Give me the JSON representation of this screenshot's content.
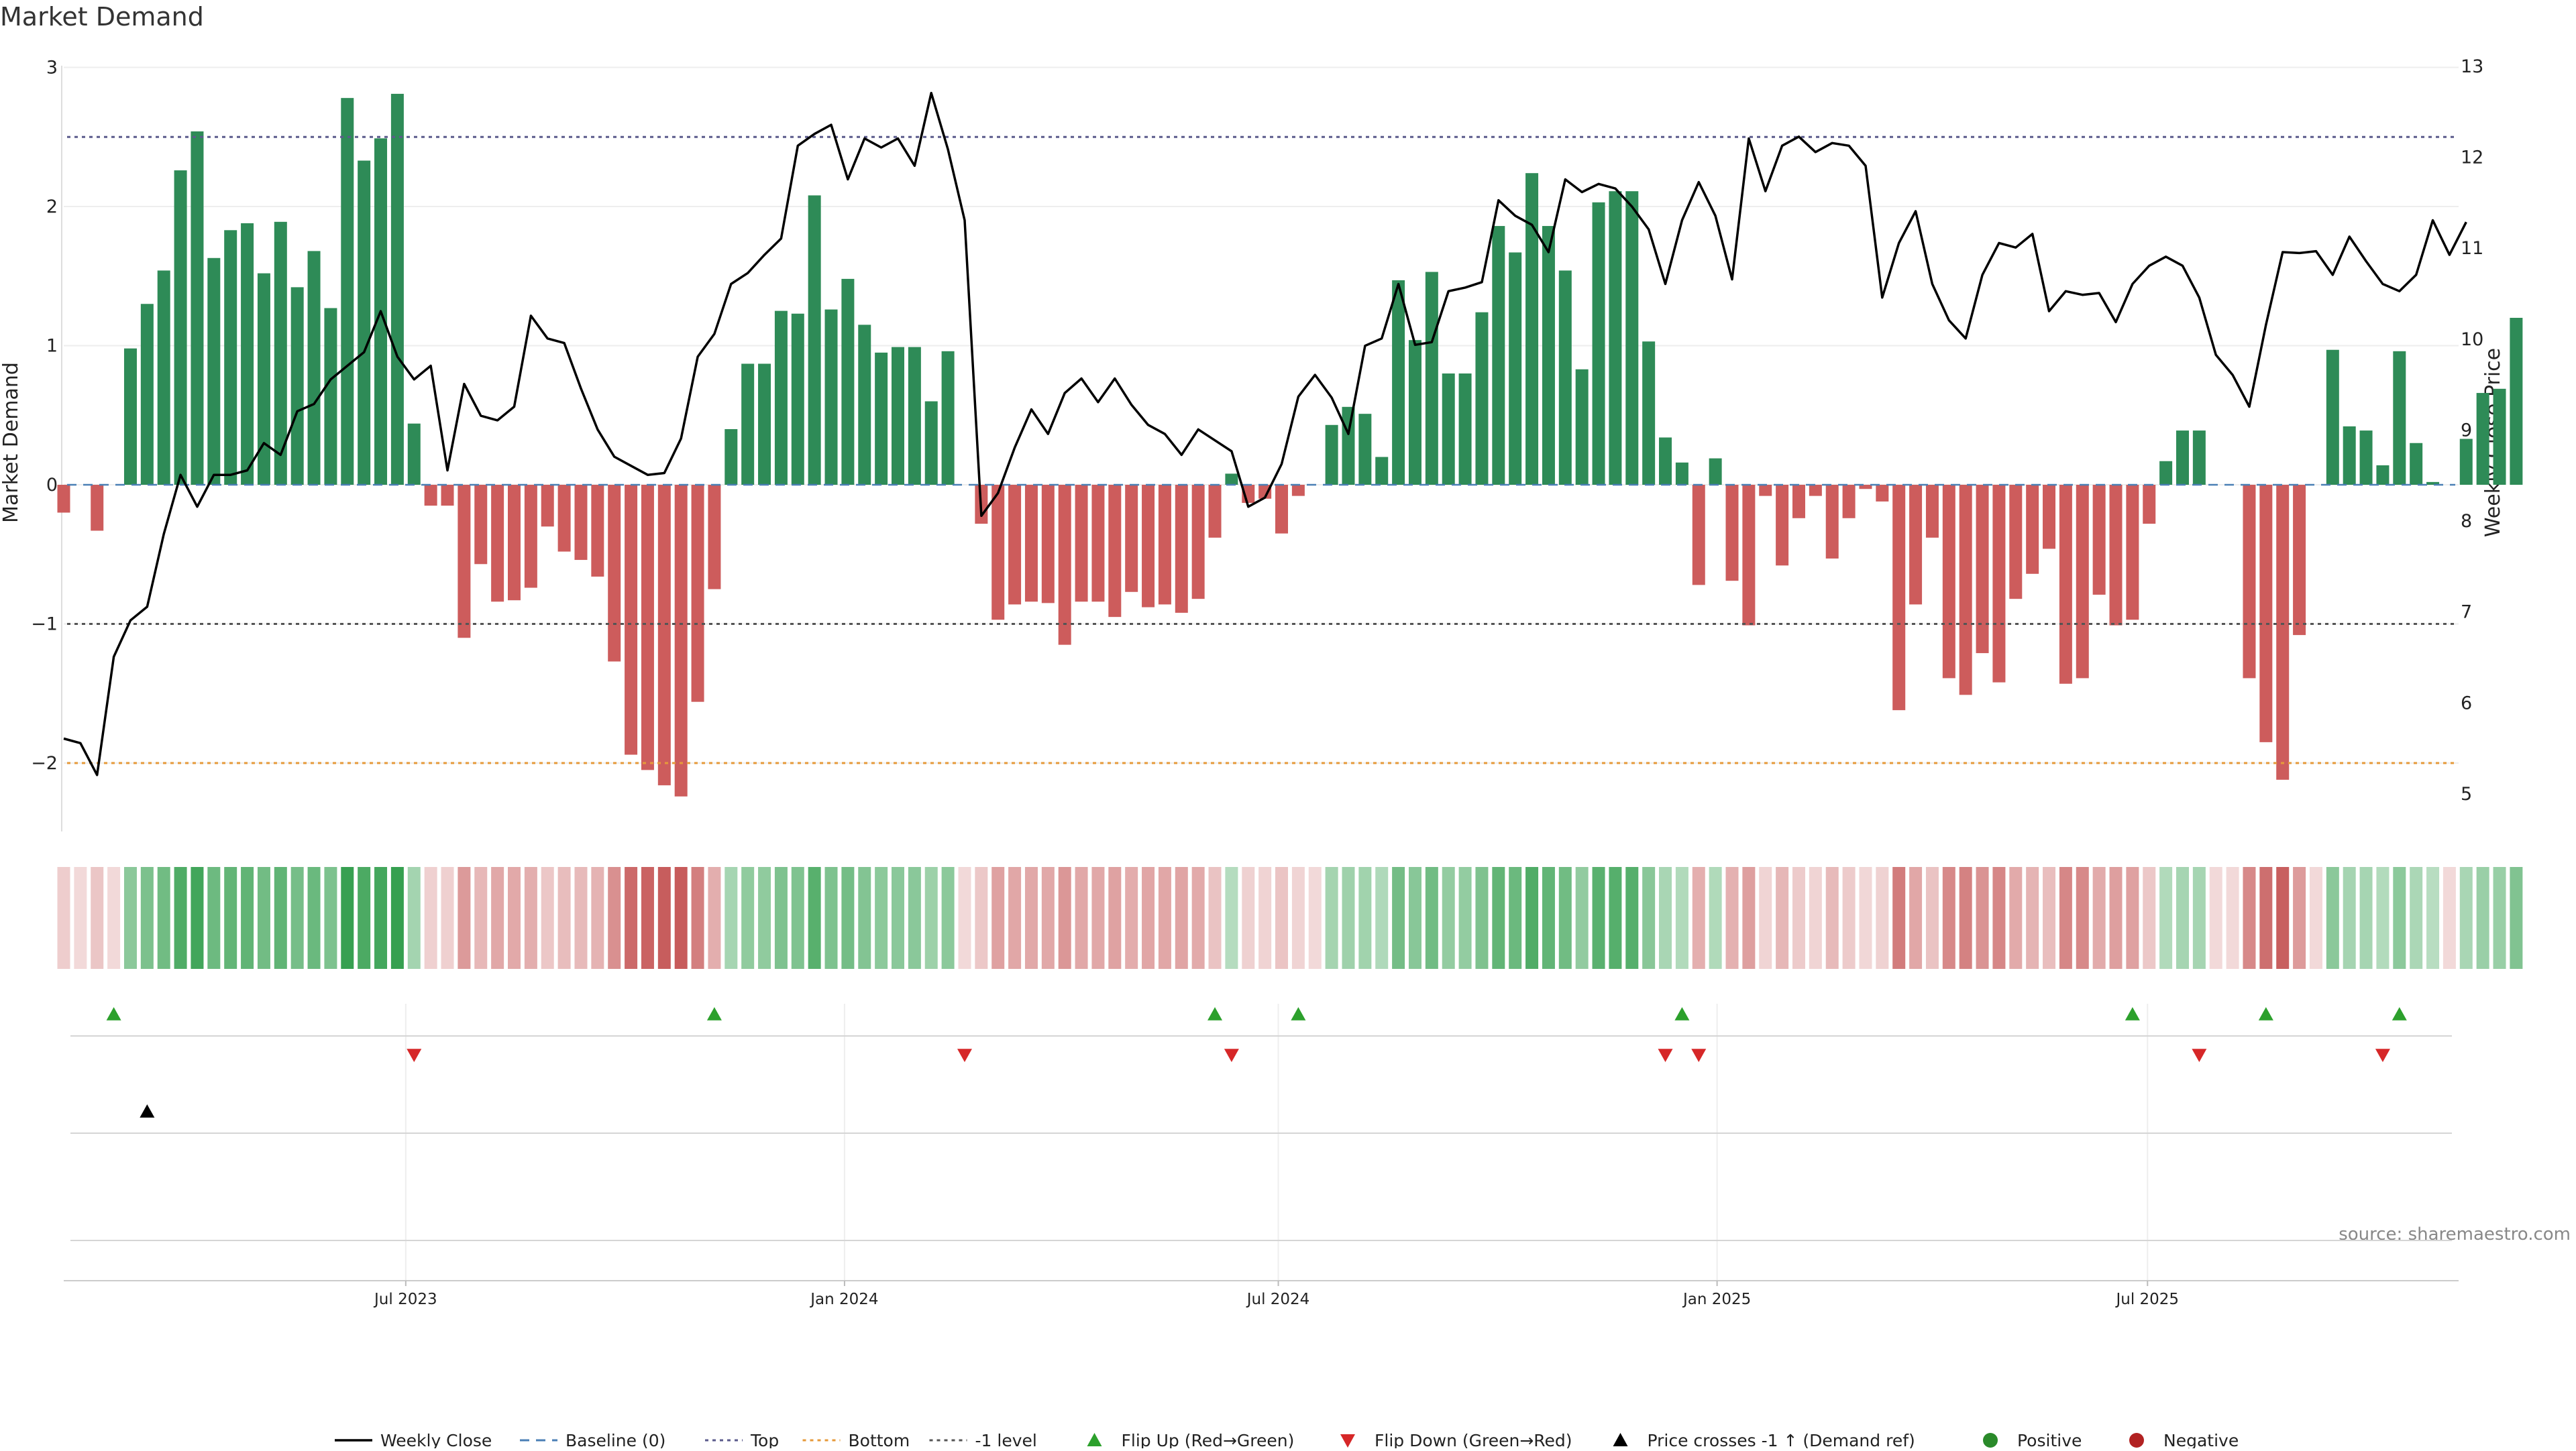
{
  "chart_data": {
    "type": "bar",
    "title": "Market Demand",
    "ylabel_left": "Market Demand",
    "ylabel_right": "Weekly Close Price",
    "source": "source: sharemaestro.com",
    "y_left_range": [
      -2.5,
      3
    ],
    "y_left_ticks": [
      3,
      2,
      1,
      0,
      -1,
      -2
    ],
    "y_left_tick_labels": [
      "3",
      "2",
      "1",
      "0",
      "−1",
      "−2"
    ],
    "y_right_range": [
      4.8,
      13
    ],
    "y_right_ticks": [
      13,
      12,
      11,
      10,
      9,
      8,
      7,
      6,
      5
    ],
    "x_ticks": [
      {
        "label": "Jul 2023",
        "week": 20.5
      },
      {
        "label": "Jan 2024",
        "week": 46.8
      },
      {
        "label": "Jul 2024",
        "week": 72.8
      },
      {
        "label": "Jan 2025",
        "week": 99.1
      },
      {
        "label": "Jul 2025",
        "week": 124.9
      }
    ],
    "reference_lines": {
      "top": 2.5,
      "bottom": -2.0,
      "minus_one": -1.0,
      "baseline": 0
    },
    "demand": [
      -0.2,
      0.0,
      -0.33,
      0.0,
      0.98,
      1.3,
      1.54,
      2.26,
      2.54,
      1.63,
      1.83,
      1.88,
      1.52,
      1.89,
      1.42,
      1.68,
      1.27,
      2.78,
      2.33,
      2.49,
      2.81,
      0.44,
      -0.15,
      -0.15,
      -1.1,
      -0.57,
      -0.84,
      -0.83,
      -0.74,
      -0.3,
      -0.48,
      -0.54,
      -0.66,
      -1.27,
      -1.94,
      -2.05,
      -2.16,
      -2.24,
      -1.56,
      -0.75,
      0.4,
      0.87,
      0.87,
      1.25,
      1.23,
      2.08,
      1.26,
      1.48,
      1.15,
      0.95,
      0.99,
      0.99,
      0.6,
      0.96,
      0.0,
      -0.28,
      -0.97,
      -0.86,
      -0.84,
      -0.85,
      -1.15,
      -0.84,
      -0.84,
      -0.95,
      -0.77,
      -0.88,
      -0.86,
      -0.92,
      -0.82,
      -0.38,
      0.08,
      -0.13,
      -0.1,
      -0.35,
      -0.08,
      0.0,
      0.43,
      0.56,
      0.51,
      0.2,
      1.47,
      1.04,
      1.53,
      0.8,
      0.8,
      1.24,
      1.86,
      1.67,
      2.24,
      1.86,
      1.54,
      0.83,
      2.03,
      2.11,
      2.11,
      1.03,
      0.34,
      0.16,
      -0.72,
      0.19,
      -0.69,
      -1.01,
      -0.08,
      -0.58,
      -0.24,
      -0.08,
      -0.53,
      -0.24,
      -0.03,
      -0.12,
      -1.62,
      -0.86,
      -0.38,
      -1.39,
      -1.51,
      -1.21,
      -1.42,
      -0.82,
      -0.64,
      -0.46,
      -1.43,
      -1.39,
      -0.79,
      -1.01,
      -0.97,
      -0.28,
      0.17,
      0.39,
      0.39,
      0.0,
      0.0,
      -1.39,
      -1.85,
      -2.12,
      -1.08,
      0.0,
      0.97,
      0.42,
      0.39,
      0.14,
      0.96,
      0.3,
      0.02,
      0.0,
      0.33,
      0.66,
      0.69,
      1.2
    ],
    "close": [
      5.6,
      5.55,
      5.2,
      6.5,
      6.9,
      7.05,
      7.85,
      8.5,
      8.15,
      8.5,
      8.5,
      8.55,
      8.85,
      8.72,
      9.2,
      9.28,
      9.55,
      9.7,
      9.85,
      10.3,
      9.8,
      9.55,
      9.7,
      8.55,
      9.5,
      9.15,
      9.1,
      9.25,
      10.25,
      10.0,
      9.95,
      9.45,
      9.0,
      8.7,
      8.6,
      8.5,
      8.52,
      8.9,
      9.8,
      10.05,
      10.6,
      10.72,
      10.92,
      11.1,
      12.12,
      12.25,
      12.35,
      11.75,
      12.2,
      12.1,
      12.2,
      11.9,
      12.7,
      12.08,
      11.3,
      8.05,
      8.3,
      8.8,
      9.22,
      8.95,
      9.4,
      9.56,
      9.3,
      9.56,
      9.27,
      9.05,
      8.95,
      8.72,
      9.0,
      8.88,
      8.76,
      8.15,
      8.25,
      8.62,
      9.36,
      9.6,
      9.35,
      8.95,
      9.92,
      10.0,
      10.6,
      9.93,
      9.96,
      10.52,
      10.56,
      10.62,
      11.52,
      11.35,
      11.25,
      10.95,
      11.75,
      11.61,
      11.7,
      11.65,
      11.45,
      11.2,
      10.6,
      11.3,
      11.72,
      11.35,
      10.65,
      12.2,
      11.62,
      12.12,
      12.22,
      12.05,
      12.15,
      12.12,
      11.9,
      10.45,
      11.05,
      11.4,
      10.6,
      10.2,
      10.0,
      10.7,
      11.05,
      11.0,
      11.15,
      10.3,
      10.52,
      10.48,
      10.5,
      10.18,
      10.6,
      10.8,
      10.9,
      10.8,
      10.45,
      9.82,
      9.6,
      9.25,
      10.15,
      10.95,
      10.94,
      10.96,
      10.7,
      11.12,
      10.85,
      10.6,
      10.52,
      10.7,
      11.3,
      10.92,
      11.28
    ],
    "flip_up_weeks": [
      3,
      39,
      69,
      74,
      97,
      124,
      132,
      140
    ],
    "flip_down_weeks": [
      21,
      54,
      70,
      96,
      98,
      128,
      139
    ],
    "price_cross_weeks": [
      5
    ],
    "legend": [
      {
        "label": "Weekly Close",
        "kind": "line",
        "color": "#000000"
      },
      {
        "label": "Baseline (0)",
        "kind": "dash",
        "color": "#4a7fb5"
      },
      {
        "label": "Top",
        "kind": "dot",
        "color": "#5b5b8c"
      },
      {
        "label": "Bottom",
        "kind": "dot",
        "color": "#e69a3a"
      },
      {
        "label": "-1 level",
        "kind": "dot",
        "color": "#555555"
      },
      {
        "label": "Flip Up (Red→Green)",
        "kind": "tri-up",
        "color": "#2ca02c"
      },
      {
        "label": "Flip Down (Green→Red)",
        "kind": "tri-down",
        "color": "#d62728"
      },
      {
        "label": "Price crosses -1 ↑ (Demand ref)",
        "kind": "tri-up",
        "color": "#000000"
      },
      {
        "label": "Positive",
        "kind": "dot-marker",
        "color": "#2a8a2a"
      },
      {
        "label": "Negative",
        "kind": "dot-marker",
        "color": "#b22222"
      }
    ],
    "colors": {
      "positive_bar": "#2e8b57",
      "negative_bar": "#cd5c5c",
      "close_line": "#000000",
      "top_line": "#5b5b8c",
      "bottom_line": "#e69a3a",
      "minus_one_line": "#555555",
      "baseline": "#4a7fb5",
      "flip_up": "#2ca02c",
      "flip_down": "#d62728",
      "price_cross": "#000000"
    }
  }
}
